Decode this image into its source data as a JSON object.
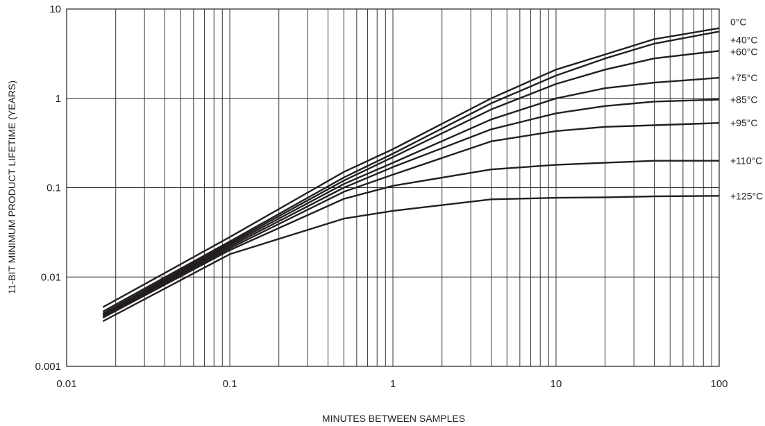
{
  "chart_data": {
    "type": "line",
    "xscale": "log",
    "yscale": "log",
    "xlim": [
      0.01,
      100
    ],
    "ylim": [
      0.001,
      10
    ],
    "xlabel": "MINUTES BETWEEN SAMPLES",
    "ylabel": "11-BIT MINIMUM PRODUCT LIFETIME (YEARS)",
    "x_ticks": [
      {
        "value": 0.01,
        "label": "0.01"
      },
      {
        "value": 0.1,
        "label": "0.1"
      },
      {
        "value": 1,
        "label": "1"
      },
      {
        "value": 10,
        "label": "10"
      },
      {
        "value": 100,
        "label": "100"
      }
    ],
    "y_ticks": [
      {
        "value": 0.001,
        "label": "0.001"
      },
      {
        "value": 0.01,
        "label": "0.01"
      },
      {
        "value": 0.1,
        "label": "0.1"
      },
      {
        "value": 1,
        "label": "1"
      },
      {
        "value": 10,
        "label": "10"
      }
    ],
    "grid": "minor-x, major-y",
    "series_label_position": "right",
    "series": [
      {
        "name": "0°C",
        "x": [
          0.0167,
          0.1,
          0.5,
          1,
          4,
          10,
          20,
          40,
          100
        ],
        "y": [
          0.0046,
          0.028,
          0.15,
          0.27,
          1.0,
          2.1,
          3.1,
          4.6,
          6.1
        ]
      },
      {
        "name": "+40°C",
        "x": [
          0.0167,
          0.1,
          0.5,
          1,
          4,
          10,
          20,
          40,
          100
        ],
        "y": [
          0.0041,
          0.025,
          0.13,
          0.24,
          0.88,
          1.8,
          2.8,
          4.1,
          5.6
        ]
      },
      {
        "name": "+60°C",
        "x": [
          0.0167,
          0.1,
          0.5,
          1,
          4,
          10,
          20,
          40,
          100
        ],
        "y": [
          0.0039,
          0.024,
          0.12,
          0.22,
          0.75,
          1.45,
          2.1,
          2.8,
          3.4
        ]
      },
      {
        "name": "+75°C",
        "x": [
          0.0167,
          0.1,
          0.5,
          1,
          4,
          10,
          20,
          40,
          100
        ],
        "y": [
          0.0038,
          0.023,
          0.11,
          0.19,
          0.58,
          1.0,
          1.3,
          1.5,
          1.7
        ]
      },
      {
        "name": "+85°C",
        "x": [
          0.0167,
          0.1,
          0.5,
          1,
          4,
          10,
          20,
          40,
          100
        ],
        "y": [
          0.0037,
          0.022,
          0.1,
          0.17,
          0.45,
          0.68,
          0.82,
          0.92,
          0.97
        ]
      },
      {
        "name": "+95°C",
        "x": [
          0.0167,
          0.1,
          0.5,
          1,
          4,
          10,
          20,
          40,
          100
        ],
        "y": [
          0.0036,
          0.021,
          0.09,
          0.14,
          0.33,
          0.43,
          0.48,
          0.5,
          0.53
        ]
      },
      {
        "name": "+110°C",
        "x": [
          0.0167,
          0.1,
          0.5,
          1,
          4,
          10,
          20,
          40,
          100
        ],
        "y": [
          0.0035,
          0.02,
          0.075,
          0.105,
          0.16,
          0.18,
          0.19,
          0.2,
          0.2
        ]
      },
      {
        "name": "+125°C",
        "x": [
          0.0167,
          0.1,
          0.5,
          1,
          4,
          10,
          20,
          40,
          100
        ],
        "y": [
          0.0032,
          0.018,
          0.045,
          0.055,
          0.074,
          0.077,
          0.078,
          0.08,
          0.081
        ]
      }
    ]
  }
}
